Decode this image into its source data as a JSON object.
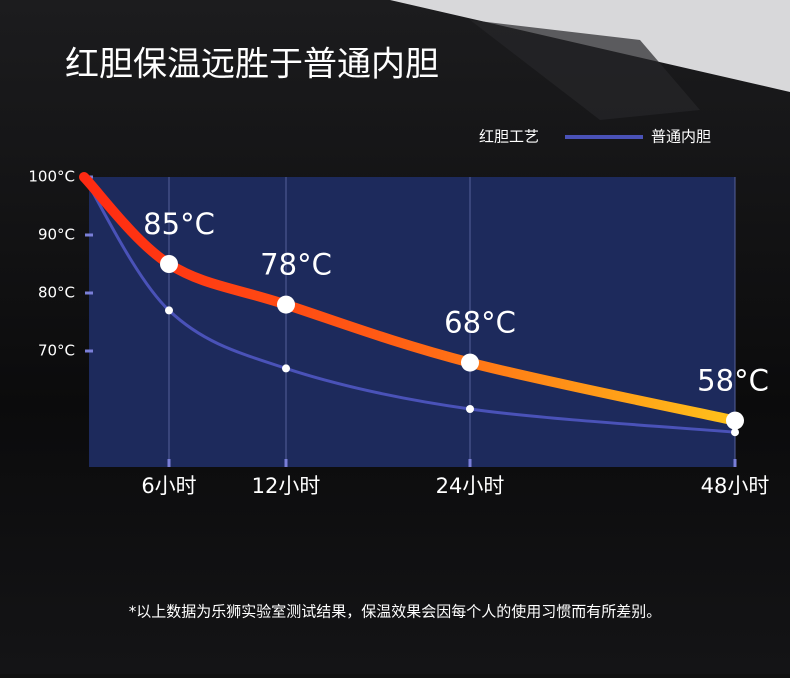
{
  "chart_data": {
    "type": "line",
    "title": "红胆保温远胜于普通内胆",
    "categories": [
      null,
      "6小时",
      "12小时",
      "24小时",
      "48小时"
    ],
    "series": [
      {
        "name": "红胆工艺",
        "color": "#ff2a12",
        "color_end": "#ffc21a",
        "values": [
          100,
          85,
          78,
          68,
          58
        ],
        "value_labels": [
          null,
          "85°C",
          "78°C",
          "68°C",
          "58°C"
        ]
      },
      {
        "name": "普通内胆",
        "color": "#4a52b8",
        "values": [
          100,
          77,
          67,
          60,
          56
        ]
      }
    ],
    "ylim": [
      50,
      100
    ],
    "yticks": [
      {
        "value": 100,
        "label": "100°C"
      },
      {
        "value": 90,
        "label": "90°C"
      },
      {
        "value": 80,
        "label": "80°C"
      },
      {
        "value": 70,
        "label": "70°C"
      }
    ],
    "grid": true,
    "footnote": "*以上数据为乐狮实验室测试结果，保温效果会因每个人的使用习惯而有所差别。"
  }
}
